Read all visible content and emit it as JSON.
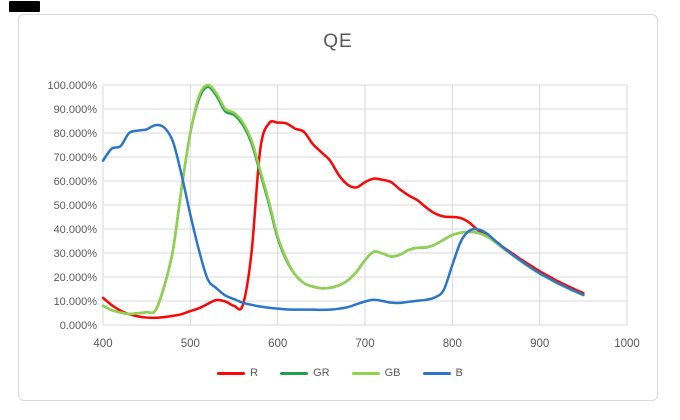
{
  "chart_data": {
    "type": "line",
    "title": "QE",
    "x_unit_nm": true,
    "x": [
      400,
      410,
      420,
      430,
      440,
      450,
      460,
      470,
      480,
      490,
      500,
      510,
      520,
      530,
      540,
      550,
      560,
      570,
      580,
      590,
      600,
      610,
      620,
      630,
      640,
      650,
      660,
      670,
      680,
      690,
      700,
      710,
      720,
      730,
      740,
      750,
      760,
      770,
      780,
      790,
      800,
      810,
      820,
      830,
      840,
      850,
      860,
      870,
      880,
      890,
      900,
      910,
      920,
      930,
      940,
      950
    ],
    "series": [
      {
        "name": "R",
        "color": "#FB0505",
        "values": [
          11.3,
          8.3,
          6.0,
          4.5,
          3.6,
          3.1,
          3.0,
          3.3,
          3.8,
          4.5,
          5.8,
          7.0,
          8.8,
          10.4,
          9.8,
          8.0,
          8.2,
          30,
          73,
          84,
          84.3,
          84,
          81.8,
          80.5,
          75.5,
          72,
          68.5,
          62.5,
          58.5,
          57.3,
          59.5,
          61,
          60.5,
          59.5,
          56.5,
          54,
          52,
          49,
          46.5,
          45.2,
          45,
          44.5,
          42.5,
          39.3,
          37,
          34.8,
          32,
          29.5,
          27,
          24.7,
          22.4,
          20.4,
          18.4,
          16.6,
          14.9,
          13.3
        ]
      },
      {
        "name": "GR",
        "color": "#21A14D",
        "values": [
          8.0,
          6.2,
          5.2,
          4.6,
          4.9,
          5.3,
          6.0,
          16,
          31,
          57,
          80,
          94.3,
          99.2,
          95.4,
          89.0,
          87.6,
          83.4,
          75.8,
          63.3,
          50.4,
          36.2,
          27.0,
          21,
          17.5,
          16,
          15.3,
          15.5,
          16.5,
          18.5,
          22,
          27,
          30.5,
          29.8,
          28.5,
          29.3,
          31.3,
          32.2,
          32.3,
          33.5,
          35.5,
          37.5,
          38.5,
          38.8,
          38.3,
          36.8,
          34.3,
          31.5,
          28.8,
          26.2,
          23.7,
          21.4,
          19.4,
          17.4,
          15.7,
          14.0,
          12.4
        ]
      },
      {
        "name": "GB",
        "color": "#92D050",
        "values": [
          8.0,
          6.2,
          5.2,
          4.6,
          4.9,
          5.3,
          6.0,
          16,
          31,
          57,
          80,
          95.5,
          100,
          96.5,
          90.0,
          88.5,
          84.5,
          77.0,
          64.5,
          51.5,
          37.0,
          27.5,
          21,
          17.5,
          16,
          15.3,
          15.5,
          16.5,
          18.5,
          22,
          27,
          30.5,
          29.8,
          28.5,
          29.3,
          31.3,
          32.2,
          32.3,
          33.5,
          35.5,
          37.5,
          38.5,
          38.8,
          38.3,
          36.8,
          34.3,
          31.5,
          28.8,
          26.2,
          23.7,
          21.4,
          19.4,
          17.4,
          15.7,
          14.0,
          12.4
        ]
      },
      {
        "name": "B",
        "color": "#2B76C8",
        "values": [
          68.5,
          73.5,
          74.5,
          80,
          81,
          81.5,
          83.3,
          82.3,
          76.5,
          62.5,
          46,
          31,
          19,
          15.3,
          12.3,
          10.8,
          9.3,
          8.4,
          7.7,
          7.2,
          6.8,
          6.5,
          6.4,
          6.4,
          6.4,
          6.3,
          6.4,
          6.8,
          7.4,
          8.6,
          9.8,
          10.5,
          10.0,
          9.3,
          9.2,
          9.7,
          10.1,
          10.5,
          11.5,
          14.5,
          25,
          35,
          39.4,
          39.8,
          38.0,
          34.8,
          31.8,
          29.0,
          26.4,
          23.9,
          21.6,
          19.6,
          17.6,
          15.9,
          14.2,
          12.6
        ]
      }
    ],
    "x_ticks": [
      "400",
      "500",
      "600",
      "700",
      "800",
      "900",
      "1000"
    ],
    "y_ticks": [
      "100.000%",
      "90.000%",
      "80.000%",
      "70.000%",
      "60.000%",
      "50.000%",
      "40.000%",
      "30.000%",
      "20.000%",
      "10.000%",
      "0.000%"
    ],
    "x_range": [
      400,
      1000
    ],
    "y_range_pct": [
      0,
      100
    ],
    "grid": true,
    "legend_position": "bottom",
    "colors": {
      "grid": "#D9D9D9",
      "axis_text": "#595959",
      "title_text": "#595959",
      "frame_border": "#D9D9D9",
      "background": "#FFFFFF"
    }
  }
}
